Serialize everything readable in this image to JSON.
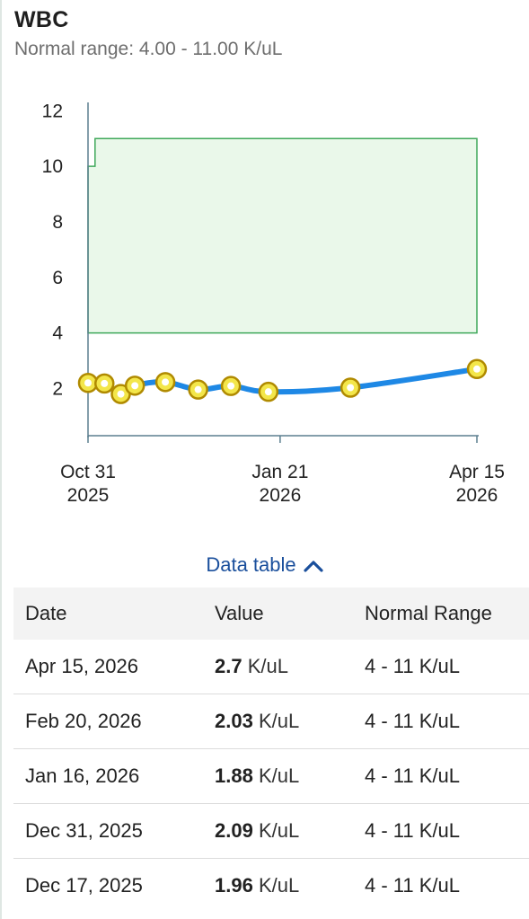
{
  "panel": {
    "title": "WBC",
    "subtitle": "Normal range: 4.00 - 11.00 K/uL"
  },
  "toggle": {
    "label": "Data table"
  },
  "table": {
    "headers": [
      "Date",
      "Value",
      "Normal Range"
    ],
    "rows": [
      {
        "date": "Apr 15, 2026",
        "value": "2.7",
        "unit": "K/uL",
        "range": "4 - 11 K/uL"
      },
      {
        "date": "Feb 20, 2026",
        "value": "2.03",
        "unit": "K/uL",
        "range": "4 - 11 K/uL"
      },
      {
        "date": "Jan 16, 2026",
        "value": "1.88",
        "unit": "K/uL",
        "range": "4 - 11 K/uL"
      },
      {
        "date": "Dec 31, 2025",
        "value": "2.09",
        "unit": "K/uL",
        "range": "4 - 11 K/uL"
      },
      {
        "date": "Dec 17, 2025",
        "value": "1.96",
        "unit": "K/uL",
        "range": "4 - 11 K/uL"
      }
    ]
  },
  "chart_data": {
    "type": "line",
    "ylim": [
      0.3,
      12.3
    ],
    "yticks": [
      2,
      4,
      6,
      8,
      10,
      12
    ],
    "xlim": [
      "2025-10-31",
      "2026-04-15"
    ],
    "xticks": [
      {
        "date": "2025-10-31",
        "label": [
          "Oct 31",
          "2025"
        ]
      },
      {
        "date": "2026-01-21",
        "label": [
          "Jan 21",
          "2026"
        ]
      },
      {
        "date": "2026-04-15",
        "label": [
          "Apr 15",
          "2026"
        ]
      }
    ],
    "normal_range": {
      "steps": [
        {
          "x": "2025-10-31",
          "low": 4,
          "high": 10
        },
        {
          "x": "2025-11-03",
          "low": 4,
          "high": 11
        },
        {
          "x": "2026-04-15",
          "low": 4,
          "high": 11
        }
      ]
    },
    "series": [
      {
        "points": [
          {
            "x": "2025-10-31",
            "y": 2.2
          },
          {
            "x": "2025-11-07",
            "y": 2.18
          },
          {
            "x": "2025-11-14",
            "y": 1.8
          },
          {
            "x": "2025-11-20",
            "y": 2.1
          },
          {
            "x": "2025-12-03",
            "y": 2.23
          },
          {
            "x": "2025-12-17",
            "y": 1.96
          },
          {
            "x": "2025-12-31",
            "y": 2.09
          },
          {
            "x": "2026-01-16",
            "y": 1.88
          },
          {
            "x": "2026-02-20",
            "y": 2.03
          },
          {
            "x": "2026-04-15",
            "y": 2.7
          }
        ]
      }
    ],
    "colors": {
      "line": "#1e88e5",
      "marker_fill": "#f3e64a",
      "marker_stroke": "#b08a00",
      "range_fill": "#eaf8ea",
      "range_stroke": "#3fa85a",
      "axis": "#5b7f8f"
    }
  }
}
